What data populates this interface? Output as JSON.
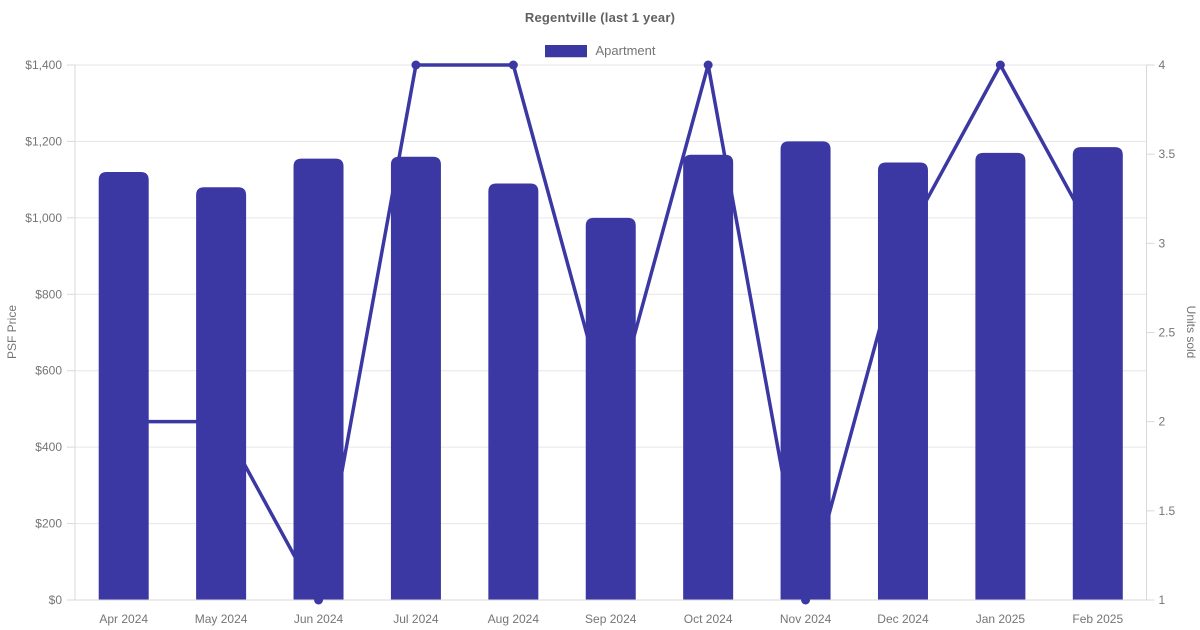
{
  "header": {
    "title": "Regentville (last 1 year)"
  },
  "legend": {
    "items": [
      {
        "label": "Apartment",
        "color": "#3b38a3"
      }
    ]
  },
  "colors": {
    "accent": "#3b38a3",
    "grid": "#e6e6e6",
    "axis_line": "#d9d9d9",
    "tick_text": "#757575",
    "title_text": "#616161"
  },
  "chart_data": {
    "type": "bar",
    "combo": "bar+line dual axis",
    "title": "Regentville (last 1 year)",
    "legend_position": "top",
    "grid": true,
    "categories": [
      "Apr 2024",
      "May 2024",
      "Jun 2024",
      "Jul 2024",
      "Aug 2024",
      "Sep 2024",
      "Oct 2024",
      "Nov 2024",
      "Dec 2024",
      "Jan 2025",
      "Feb 2025"
    ],
    "series": [
      {
        "name": "Apartment",
        "type": "bar",
        "axis": "left",
        "values": [
          1120,
          1080,
          1155,
          1160,
          1090,
          1000,
          1165,
          1200,
          1145,
          1170,
          1185
        ],
        "color": "#3b38a3"
      },
      {
        "name": "Units sold",
        "type": "line",
        "axis": "right",
        "values": [
          2,
          2,
          1,
          4,
          4,
          2,
          4,
          1,
          3,
          4,
          3
        ],
        "color": "#3b38a3"
      }
    ],
    "left_axis": {
      "title": "PSF Price",
      "min": 0,
      "max": 1400,
      "step": 200,
      "tick_labels": [
        "$0",
        "$200",
        "$400",
        "$600",
        "$800",
        "$1,000",
        "$1,200",
        "$1,400"
      ]
    },
    "right_axis": {
      "title": "Units sold",
      "min": 1,
      "max": 4,
      "step": 0.5,
      "tick_labels": [
        "1",
        "1.5",
        "2",
        "2.5",
        "3",
        "3.5",
        "4"
      ]
    }
  }
}
